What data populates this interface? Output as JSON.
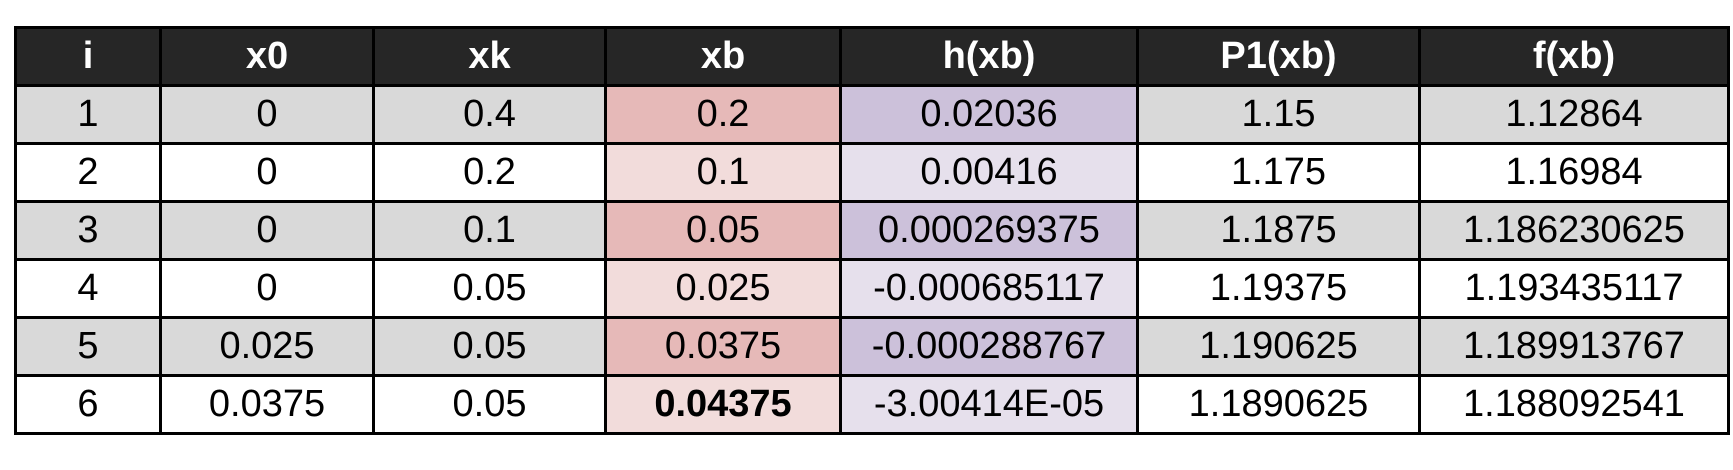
{
  "table": {
    "headers": [
      "i",
      "x0",
      "xk",
      "xb",
      "h(xb)",
      "P1(xb)",
      "f(xb)"
    ],
    "rows": [
      [
        "1",
        "0",
        "0.4",
        "0.2",
        "0.02036",
        "1.15",
        "1.12864"
      ],
      [
        "2",
        "0",
        "0.2",
        "0.1",
        "0.00416",
        "1.175",
        "1.16984"
      ],
      [
        "3",
        "0",
        "0.1",
        "0.05",
        "0.000269375",
        "1.1875",
        "1.186230625"
      ],
      [
        "4",
        "0",
        "0.05",
        "0.025",
        "-0.000685117",
        "1.19375",
        "1.193435117"
      ],
      [
        "5",
        "0.025",
        "0.05",
        "0.0375",
        "-0.000288767",
        "1.190625",
        "1.189913767"
      ],
      [
        "6",
        "0.0375",
        "0.05",
        "0.04375",
        "-3.00414E-05",
        "1.1890625",
        "1.188092541"
      ]
    ]
  },
  "colors": {
    "header_bg": "#262626",
    "header_text": "#ffffff",
    "row_shaded": "#d9d9d9",
    "xb_shaded": "#e6b9b8",
    "xb_plain": "#f2dcdb",
    "h_shaded": "#ccc1da",
    "h_plain": "#e6e0ec"
  }
}
